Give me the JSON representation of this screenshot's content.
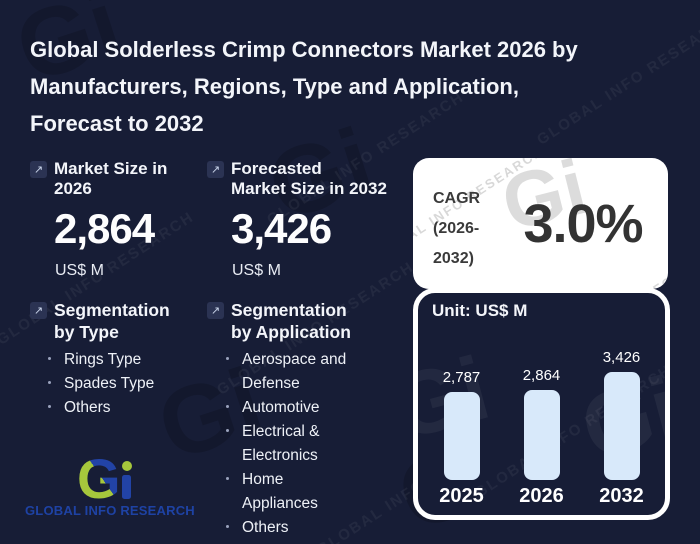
{
  "title_lines": [
    "Global Solderless Crimp Connectors Market 2026 by",
    "Manufacturers, Regions, Type and Application,",
    "Forecast to 2032"
  ],
  "icons": {
    "trend_arrow": "↗"
  },
  "stats": [
    {
      "label_lines": [
        "Market Size in",
        "2026"
      ],
      "value": "2,864",
      "unit": "US$ M"
    },
    {
      "label_lines": [
        "Forecasted",
        "Market Size in 2032"
      ],
      "value": "3,426",
      "unit": "US$ M"
    }
  ],
  "segmentation_type": {
    "heading_lines": [
      "Segmentation",
      "by Type"
    ],
    "items": [
      "Rings Type",
      "Spades Type",
      "Others"
    ]
  },
  "segmentation_application": {
    "heading_lines": [
      "Segmentation",
      "by Application"
    ],
    "items": [
      "Aerospace and Defense",
      "Automotive",
      "Electrical & Electronics",
      "Home Appliances",
      "Others"
    ]
  },
  "cagr": {
    "label_lines": [
      "CAGR",
      "(2026-",
      "2032)"
    ],
    "value": "3.0%"
  },
  "chart_data": {
    "type": "bar",
    "title": "Unit: US$ M",
    "categories": [
      "2025",
      "2026",
      "2032"
    ],
    "values": [
      2787,
      2864,
      3426
    ],
    "value_labels": [
      "2,787",
      "2,864",
      "3,426"
    ],
    "ylabel": "US$ M",
    "ylim": [
      0,
      3426
    ],
    "grid": false,
    "legend": "none",
    "bar_color": "#d8e9fa"
  },
  "logo": {
    "monogram_g": "G",
    "name": "GLOBAL INFO RESEARCH"
  },
  "watermark": {
    "text": "GLOBAL INFO RESEARCH",
    "monogram": "Gi"
  },
  "colors": {
    "background": "#171d36",
    "card_white": "#ffffff",
    "bar_fill": "#d8e9fa",
    "title_text": "#f3f5fa",
    "dark_text": "#3a3a3a",
    "logo_green": "#a6c73c",
    "logo_blue": "#2243a6",
    "icon_bg": "#2b3353"
  }
}
